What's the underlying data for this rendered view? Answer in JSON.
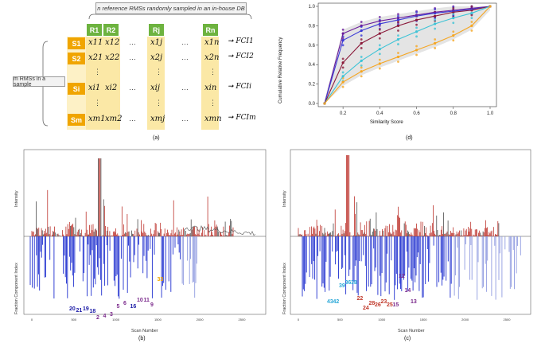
{
  "panel_a": {
    "header": "n reference RMSs randomly sampled in an in-house DB",
    "sample_label": "m RMSs in a sample",
    "ref_labels": [
      "R1",
      "R2",
      "Rj",
      "Rn"
    ],
    "sample_labels": [
      "S1",
      "S2",
      "Si",
      "Sm"
    ],
    "rows": [
      [
        "x11",
        "x12",
        "x1j",
        "x1n"
      ],
      [
        "x21",
        "x22",
        "x2j",
        "x2n"
      ],
      [
        "xi1",
        "xi2",
        "xij",
        "xin"
      ],
      [
        "xm1",
        "xm2",
        "xmj",
        "xmn"
      ]
    ],
    "fci": [
      "FCI1",
      "FCI2",
      "FCIi",
      "FCIm"
    ],
    "ellipsis": "…",
    "vdots": "⋮",
    "caption": "(a)"
  },
  "panel_b": {
    "caption": "(b)",
    "x_ticks": [
      "0",
      "500",
      "1000",
      "1500",
      "2000",
      "2500"
    ],
    "top_ylabel": "Intensity",
    "bottom_ylabel": "Fraction Component Index",
    "xlabel": "Scan Number",
    "labels": [
      {
        "text": "20",
        "color": "#1a1aa6"
      },
      {
        "text": "21",
        "color": "#1a1aa6"
      },
      {
        "text": "19",
        "color": "#1a1aa6"
      },
      {
        "text": "18",
        "color": "#1a1aa6"
      },
      {
        "text": "2",
        "color": "#7b2a8c"
      },
      {
        "text": "4",
        "color": "#7b2a8c"
      },
      {
        "text": "3",
        "color": "#7b2a8c"
      },
      {
        "text": "5",
        "color": "#7b2a8c"
      },
      {
        "text": "6",
        "color": "#7b2a8c"
      },
      {
        "text": "16",
        "color": "#1a1aa6"
      },
      {
        "text": "10",
        "color": "#7b2a8c"
      },
      {
        "text": "11",
        "color": "#7b2a8c"
      },
      {
        "text": "9",
        "color": "#7b2a8c"
      },
      {
        "text": "33",
        "color": "#f0a500"
      }
    ]
  },
  "panel_c": {
    "caption": "(c)",
    "x_ticks": [
      "0",
      "500",
      "1000",
      "1500",
      "2000",
      "2500"
    ],
    "top_ylabel": "Intensity",
    "bottom_ylabel": "Fraction Component Index",
    "xlabel": "Scan Number",
    "labels": [
      {
        "text": "43",
        "color": "#2aa8d8"
      },
      {
        "text": "42",
        "color": "#2aa8d8"
      },
      {
        "text": "39",
        "color": "#2aa8d8"
      },
      {
        "text": "36",
        "color": "#2aa8d8"
      },
      {
        "text": "38",
        "color": "#2aa8d8"
      },
      {
        "text": "22",
        "color": "#c0392b"
      },
      {
        "text": "24",
        "color": "#c0392b"
      },
      {
        "text": "28",
        "color": "#c0392b"
      },
      {
        "text": "26",
        "color": "#c0392b"
      },
      {
        "text": "23",
        "color": "#c0392b"
      },
      {
        "text": "25",
        "color": "#c0392b"
      },
      {
        "text": "15",
        "color": "#7b2a8c"
      },
      {
        "text": "12",
        "color": "#7b2a8c"
      },
      {
        "text": "14",
        "color": "#7b2a8c"
      },
      {
        "text": "13",
        "color": "#7b2a8c"
      }
    ]
  },
  "chart_data": {
    "type": "line",
    "title": "",
    "caption": "(d)",
    "xlabel": "Similarity Score",
    "ylabel": "Cumulative Relative Frequency",
    "x": [
      0.1,
      0.2,
      0.3,
      0.4,
      0.5,
      0.6,
      0.7,
      0.8,
      0.9,
      1.0
    ],
    "x_ticks": [
      "0.2",
      "0.4",
      "0.6",
      "0.8",
      "1.0"
    ],
    "y_ticks": [
      "0.0",
      "0.2",
      "0.4",
      "0.6",
      "0.8",
      "1.0"
    ],
    "xlim": [
      0.1,
      1.0
    ],
    "ylim": [
      0.0,
      1.0
    ],
    "series": [
      {
        "name": "purple",
        "color": "#6a1b9a",
        "values": [
          0.0,
          0.72,
          0.8,
          0.85,
          0.88,
          0.91,
          0.94,
          0.96,
          0.98,
          1.0
        ]
      },
      {
        "name": "blue",
        "color": "#3b3bd6",
        "values": [
          0.0,
          0.65,
          0.75,
          0.82,
          0.86,
          0.9,
          0.93,
          0.95,
          0.97,
          1.0
        ]
      },
      {
        "name": "darkred",
        "color": "#8b1a3a",
        "values": [
          0.0,
          0.42,
          0.62,
          0.72,
          0.8,
          0.86,
          0.9,
          0.94,
          0.96,
          1.0
        ]
      },
      {
        "name": "cyan",
        "color": "#3cc3d6",
        "values": [
          0.0,
          0.28,
          0.44,
          0.56,
          0.66,
          0.74,
          0.82,
          0.88,
          0.93,
          1.0
        ]
      },
      {
        "name": "orange",
        "color": "#f5a623",
        "values": [
          0.0,
          0.22,
          0.33,
          0.41,
          0.48,
          0.55,
          0.62,
          0.7,
          0.8,
          1.0
        ]
      }
    ]
  }
}
